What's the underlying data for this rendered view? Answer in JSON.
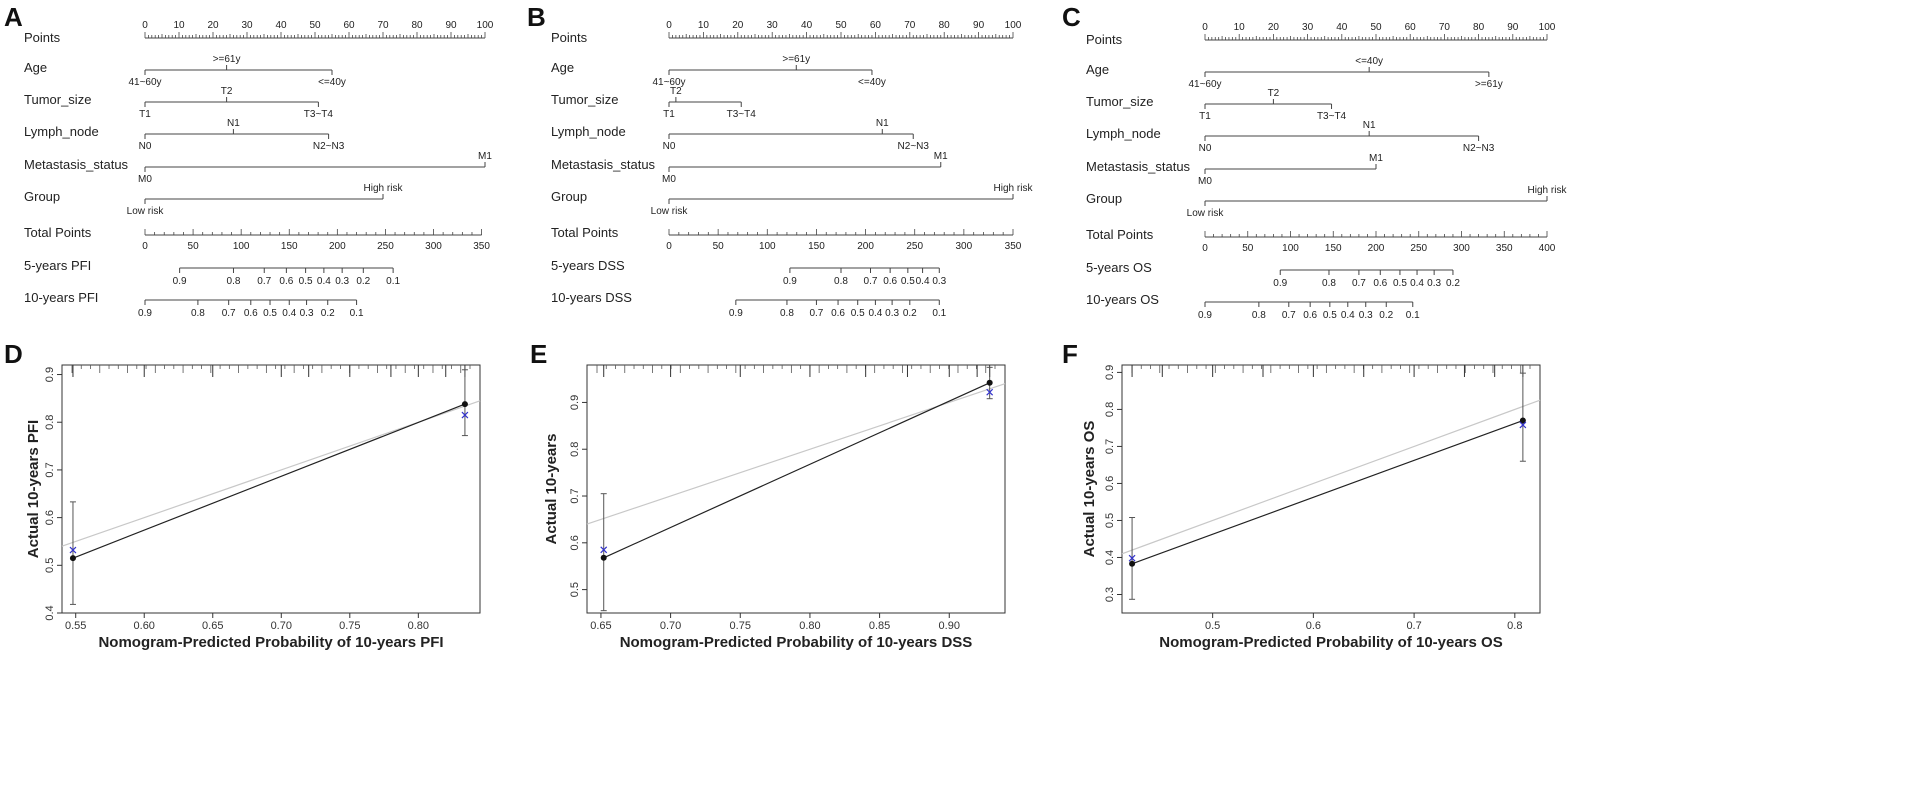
{
  "nomograms": [
    {
      "letter": "A",
      "points_label": "Points",
      "points_ticks": [
        "0",
        "10",
        "20",
        "30",
        "40",
        "50",
        "60",
        "70",
        "80",
        "90",
        "100"
      ],
      "variables": [
        {
          "name": "Age",
          "levels": [
            {
              "label": "41~60y",
              "points": 0,
              "side": "below"
            },
            {
              "label": ">=61y",
              "points": 24,
              "side": "above"
            },
            {
              "label": "<=40y",
              "points": 55,
              "side": "below"
            }
          ]
        },
        {
          "name": "Tumor_size",
          "levels": [
            {
              "label": "T1",
              "points": 0,
              "side": "below"
            },
            {
              "label": "T2",
              "points": 24,
              "side": "above"
            },
            {
              "label": "T3~T4",
              "points": 51,
              "side": "below"
            }
          ]
        },
        {
          "name": "Lymph_node",
          "levels": [
            {
              "label": "N0",
              "points": 0,
              "side": "below"
            },
            {
              "label": "N1",
              "points": 26,
              "side": "above"
            },
            {
              "label": "N2~N3",
              "points": 54,
              "side": "below"
            }
          ]
        },
        {
          "name": "Metastasis_status",
          "levels": [
            {
              "label": "M0",
              "points": 0,
              "side": "below"
            },
            {
              "label": "M1",
              "points": 100,
              "side": "above"
            }
          ]
        },
        {
          "name": "Group",
          "levels": [
            {
              "label": "Low risk",
              "points": 0,
              "side": "below"
            },
            {
              "label": "High risk",
              "points": 70,
              "side": "above"
            }
          ]
        }
      ],
      "total_points": {
        "label": "Total Points",
        "max": 350,
        "ticks": [
          "0",
          "50",
          "100",
          "150",
          "200",
          "250",
          "300",
          "350"
        ]
      },
      "prob_axes": [
        {
          "label": "5-years PFI",
          "ticks": [
            {
              "label": "0.9",
              "total": 36
            },
            {
              "label": "0.8",
              "total": 92
            },
            {
              "label": "0.7",
              "total": 124
            },
            {
              "label": "0.6",
              "total": 147
            },
            {
              "label": "0.5",
              "total": 167
            },
            {
              "label": "0.4",
              "total": 186
            },
            {
              "label": "0.3",
              "total": 205
            },
            {
              "label": "0.2",
              "total": 227
            },
            {
              "label": "0.1",
              "total": 258
            }
          ]
        },
        {
          "label": "10-years PFI",
          "ticks": [
            {
              "label": "0.9",
              "total": 0
            },
            {
              "label": "0.8",
              "total": 55
            },
            {
              "label": "0.7",
              "total": 87
            },
            {
              "label": "0.6",
              "total": 110
            },
            {
              "label": "0.5",
              "total": 130
            },
            {
              "label": "0.4",
              "total": 150
            },
            {
              "label": "0.3",
              "total": 168
            },
            {
              "label": "0.2",
              "total": 190
            },
            {
              "label": "0.1",
              "total": 220
            }
          ]
        }
      ]
    },
    {
      "letter": "B",
      "points_label": "Points",
      "points_ticks": [
        "0",
        "10",
        "20",
        "30",
        "40",
        "50",
        "60",
        "70",
        "80",
        "90",
        "100"
      ],
      "variables": [
        {
          "name": "Age",
          "levels": [
            {
              "label": "41~60y",
              "points": 0,
              "side": "below"
            },
            {
              "label": ">=61y",
              "points": 37,
              "side": "above"
            },
            {
              "label": "<=40y",
              "points": 59,
              "side": "below"
            }
          ]
        },
        {
          "name": "Tumor_size",
          "levels": [
            {
              "label": "T1",
              "points": 0,
              "side": "below"
            },
            {
              "label": "T2",
              "points": 2,
              "side": "above"
            },
            {
              "label": "T3~T4",
              "points": 21,
              "side": "below"
            }
          ]
        },
        {
          "name": "Lymph_node",
          "levels": [
            {
              "label": "N0",
              "points": 0,
              "side": "below"
            },
            {
              "label": "N1",
              "points": 62,
              "side": "above"
            },
            {
              "label": "N2~N3",
              "points": 71,
              "side": "below"
            }
          ]
        },
        {
          "name": "Metastasis_status",
          "levels": [
            {
              "label": "M0",
              "points": 0,
              "side": "below"
            },
            {
              "label": "M1",
              "points": 79,
              "side": "above"
            }
          ]
        },
        {
          "name": "Group",
          "levels": [
            {
              "label": "Low risk",
              "points": 0,
              "side": "below"
            },
            {
              "label": "High risk",
              "points": 100,
              "side": "above"
            }
          ]
        }
      ],
      "total_points": {
        "label": "Total Points",
        "max": 350,
        "ticks": [
          "0",
          "50",
          "100",
          "150",
          "200",
          "250",
          "300",
          "350"
        ]
      },
      "prob_axes": [
        {
          "label": "5-years DSS",
          "ticks": [
            {
              "label": "0.9",
              "total": 123
            },
            {
              "label": "0.8",
              "total": 175
            },
            {
              "label": "0.7",
              "total": 205
            },
            {
              "label": "0.6",
              "total": 225
            },
            {
              "label": "0.5",
              "total": 243
            },
            {
              "label": "0.4",
              "total": 258
            },
            {
              "label": "0.3",
              "total": 275
            }
          ]
        },
        {
          "label": "10-years DSS",
          "ticks": [
            {
              "label": "0.9",
              "total": 68
            },
            {
              "label": "0.8",
              "total": 120
            },
            {
              "label": "0.7",
              "total": 150
            },
            {
              "label": "0.6",
              "total": 172
            },
            {
              "label": "0.5",
              "total": 192
            },
            {
              "label": "0.4",
              "total": 210
            },
            {
              "label": "0.3",
              "total": 227
            },
            {
              "label": "0.2",
              "total": 245
            },
            {
              "label": "0.1",
              "total": 275
            }
          ]
        }
      ]
    },
    {
      "letter": "C",
      "points_label": "Points",
      "points_ticks": [
        "0",
        "10",
        "20",
        "30",
        "40",
        "50",
        "60",
        "70",
        "80",
        "90",
        "100"
      ],
      "variables": [
        {
          "name": "Age",
          "levels": [
            {
              "label": "41~60y",
              "points": 0,
              "side": "below"
            },
            {
              "label": "<=40y",
              "points": 48,
              "side": "above"
            },
            {
              "label": ">=61y",
              "points": 83,
              "side": "below"
            }
          ]
        },
        {
          "name": "Tumor_size",
          "levels": [
            {
              "label": "T1",
              "points": 0,
              "side": "below"
            },
            {
              "label": "T2",
              "points": 20,
              "side": "above"
            },
            {
              "label": "T3~T4",
              "points": 37,
              "side": "below"
            }
          ]
        },
        {
          "name": "Lymph_node",
          "levels": [
            {
              "label": "N0",
              "points": 0,
              "side": "below"
            },
            {
              "label": "N1",
              "points": 48,
              "side": "above"
            },
            {
              "label": "N2~N3",
              "points": 80,
              "side": "below"
            }
          ]
        },
        {
          "name": "Metastasis_status",
          "levels": [
            {
              "label": "M0",
              "points": 0,
              "side": "below"
            },
            {
              "label": "M1",
              "points": 50,
              "side": "above"
            }
          ]
        },
        {
          "name": "Group",
          "levels": [
            {
              "label": "Low risk",
              "points": 0,
              "side": "below"
            },
            {
              "label": "High risk",
              "points": 100,
              "side": "above"
            }
          ]
        }
      ],
      "total_points": {
        "label": "Total Points",
        "max": 400,
        "ticks": [
          "0",
          "50",
          "100",
          "150",
          "200",
          "250",
          "300",
          "350",
          "400"
        ]
      },
      "prob_axes": [
        {
          "label": "5-years OS",
          "ticks": [
            {
              "label": "0.9",
              "total": 88
            },
            {
              "label": "0.8",
              "total": 145
            },
            {
              "label": "0.7",
              "total": 180
            },
            {
              "label": "0.6",
              "total": 205
            },
            {
              "label": "0.5",
              "total": 228
            },
            {
              "label": "0.4",
              "total": 248
            },
            {
              "label": "0.3",
              "total": 268
            },
            {
              "label": "0.2",
              "total": 290
            }
          ]
        },
        {
          "label": "10-years OS",
          "ticks": [
            {
              "label": "0.9",
              "total": 0
            },
            {
              "label": "0.8",
              "total": 63
            },
            {
              "label": "0.7",
              "total": 98
            },
            {
              "label": "0.6",
              "total": 123
            },
            {
              "label": "0.5",
              "total": 146
            },
            {
              "label": "0.4",
              "total": 167
            },
            {
              "label": "0.3",
              "total": 188
            },
            {
              "label": "0.2",
              "total": 212
            },
            {
              "label": "0.1",
              "total": 243
            }
          ]
        }
      ]
    }
  ],
  "chart_data": [
    {
      "type": "scatter",
      "letter": "D",
      "xlabel": "Nomogram-Predicted Probability of 10-years PFI",
      "ylabel": "Actual 10-years PFI",
      "xlim": [
        0.54,
        0.845
      ],
      "ylim": [
        0.4,
        0.92
      ],
      "xticks": [
        0.55,
        0.6,
        0.65,
        0.7,
        0.75,
        0.8
      ],
      "xtick_labels": [
        "0.55",
        "0.60",
        "0.65",
        "0.70",
        "0.75",
        "0.80"
      ],
      "yticks": [
        0.4,
        0.5,
        0.6,
        0.7,
        0.8,
        0.9
      ],
      "ytick_labels": [
        "0.4",
        "0.5",
        "0.6",
        "0.7",
        "0.8",
        "0.9"
      ],
      "ideal_line": true,
      "points": [
        {
          "x": 0.548,
          "y": 0.515,
          "lower": 0.418,
          "upper": 0.633,
          "corrected": 0.532
        },
        {
          "x": 0.834,
          "y": 0.838,
          "lower": 0.772,
          "upper": 0.91,
          "corrected": 0.815
        }
      ],
      "rug": [
        0.548,
        0.6,
        0.65,
        0.7,
        0.72,
        0.75,
        0.78,
        0.8,
        0.82,
        0.834
      ]
    },
    {
      "type": "scatter",
      "letter": "E",
      "xlabel": "Nomogram-Predicted Probability of 10-years DSS",
      "ylabel": "Actual 10-years",
      "xlim": [
        0.64,
        0.94
      ],
      "ylim": [
        0.45,
        0.98
      ],
      "xticks": [
        0.65,
        0.7,
        0.75,
        0.8,
        0.85,
        0.9
      ],
      "xtick_labels": [
        "0.65",
        "0.70",
        "0.75",
        "0.80",
        "0.85",
        "0.90"
      ],
      "yticks": [
        0.5,
        0.6,
        0.7,
        0.8,
        0.9
      ],
      "ytick_labels": [
        "0.5",
        "0.6",
        "0.7",
        "0.8",
        "0.9"
      ],
      "ideal_line": true,
      "points": [
        {
          "x": 0.652,
          "y": 0.568,
          "lower": 0.455,
          "upper": 0.705,
          "corrected": 0.585
        },
        {
          "x": 0.929,
          "y": 0.942,
          "lower": 0.908,
          "upper": 0.975,
          "corrected": 0.922
        }
      ],
      "rug": [
        0.652,
        0.7,
        0.75,
        0.8,
        0.84,
        0.87,
        0.9,
        0.92,
        0.929
      ]
    },
    {
      "type": "scatter",
      "letter": "F",
      "xlabel": "Nomogram-Predicted Probability of 10-years OS",
      "ylabel": "Actual 10-years OS",
      "xlim": [
        0.41,
        0.825
      ],
      "ylim": [
        0.25,
        0.92
      ],
      "xticks": [
        0.5,
        0.6,
        0.7,
        0.8
      ],
      "xtick_labels": [
        "0.5",
        "0.6",
        "0.7",
        "0.8"
      ],
      "yticks": [
        0.3,
        0.4,
        0.5,
        0.6,
        0.7,
        0.8,
        0.9
      ],
      "ytick_labels": [
        "0.3",
        "0.4",
        "0.5",
        "0.6",
        "0.7",
        "0.8",
        "0.9"
      ],
      "ideal_line": true,
      "points": [
        {
          "x": 0.42,
          "y": 0.383,
          "lower": 0.287,
          "upper": 0.508,
          "corrected": 0.398
        },
        {
          "x": 0.808,
          "y": 0.77,
          "lower": 0.66,
          "upper": 0.898,
          "corrected": 0.758
        }
      ],
      "rug": [
        0.42,
        0.45,
        0.5,
        0.55,
        0.6,
        0.65,
        0.7,
        0.75,
        0.78,
        0.808
      ]
    }
  ]
}
